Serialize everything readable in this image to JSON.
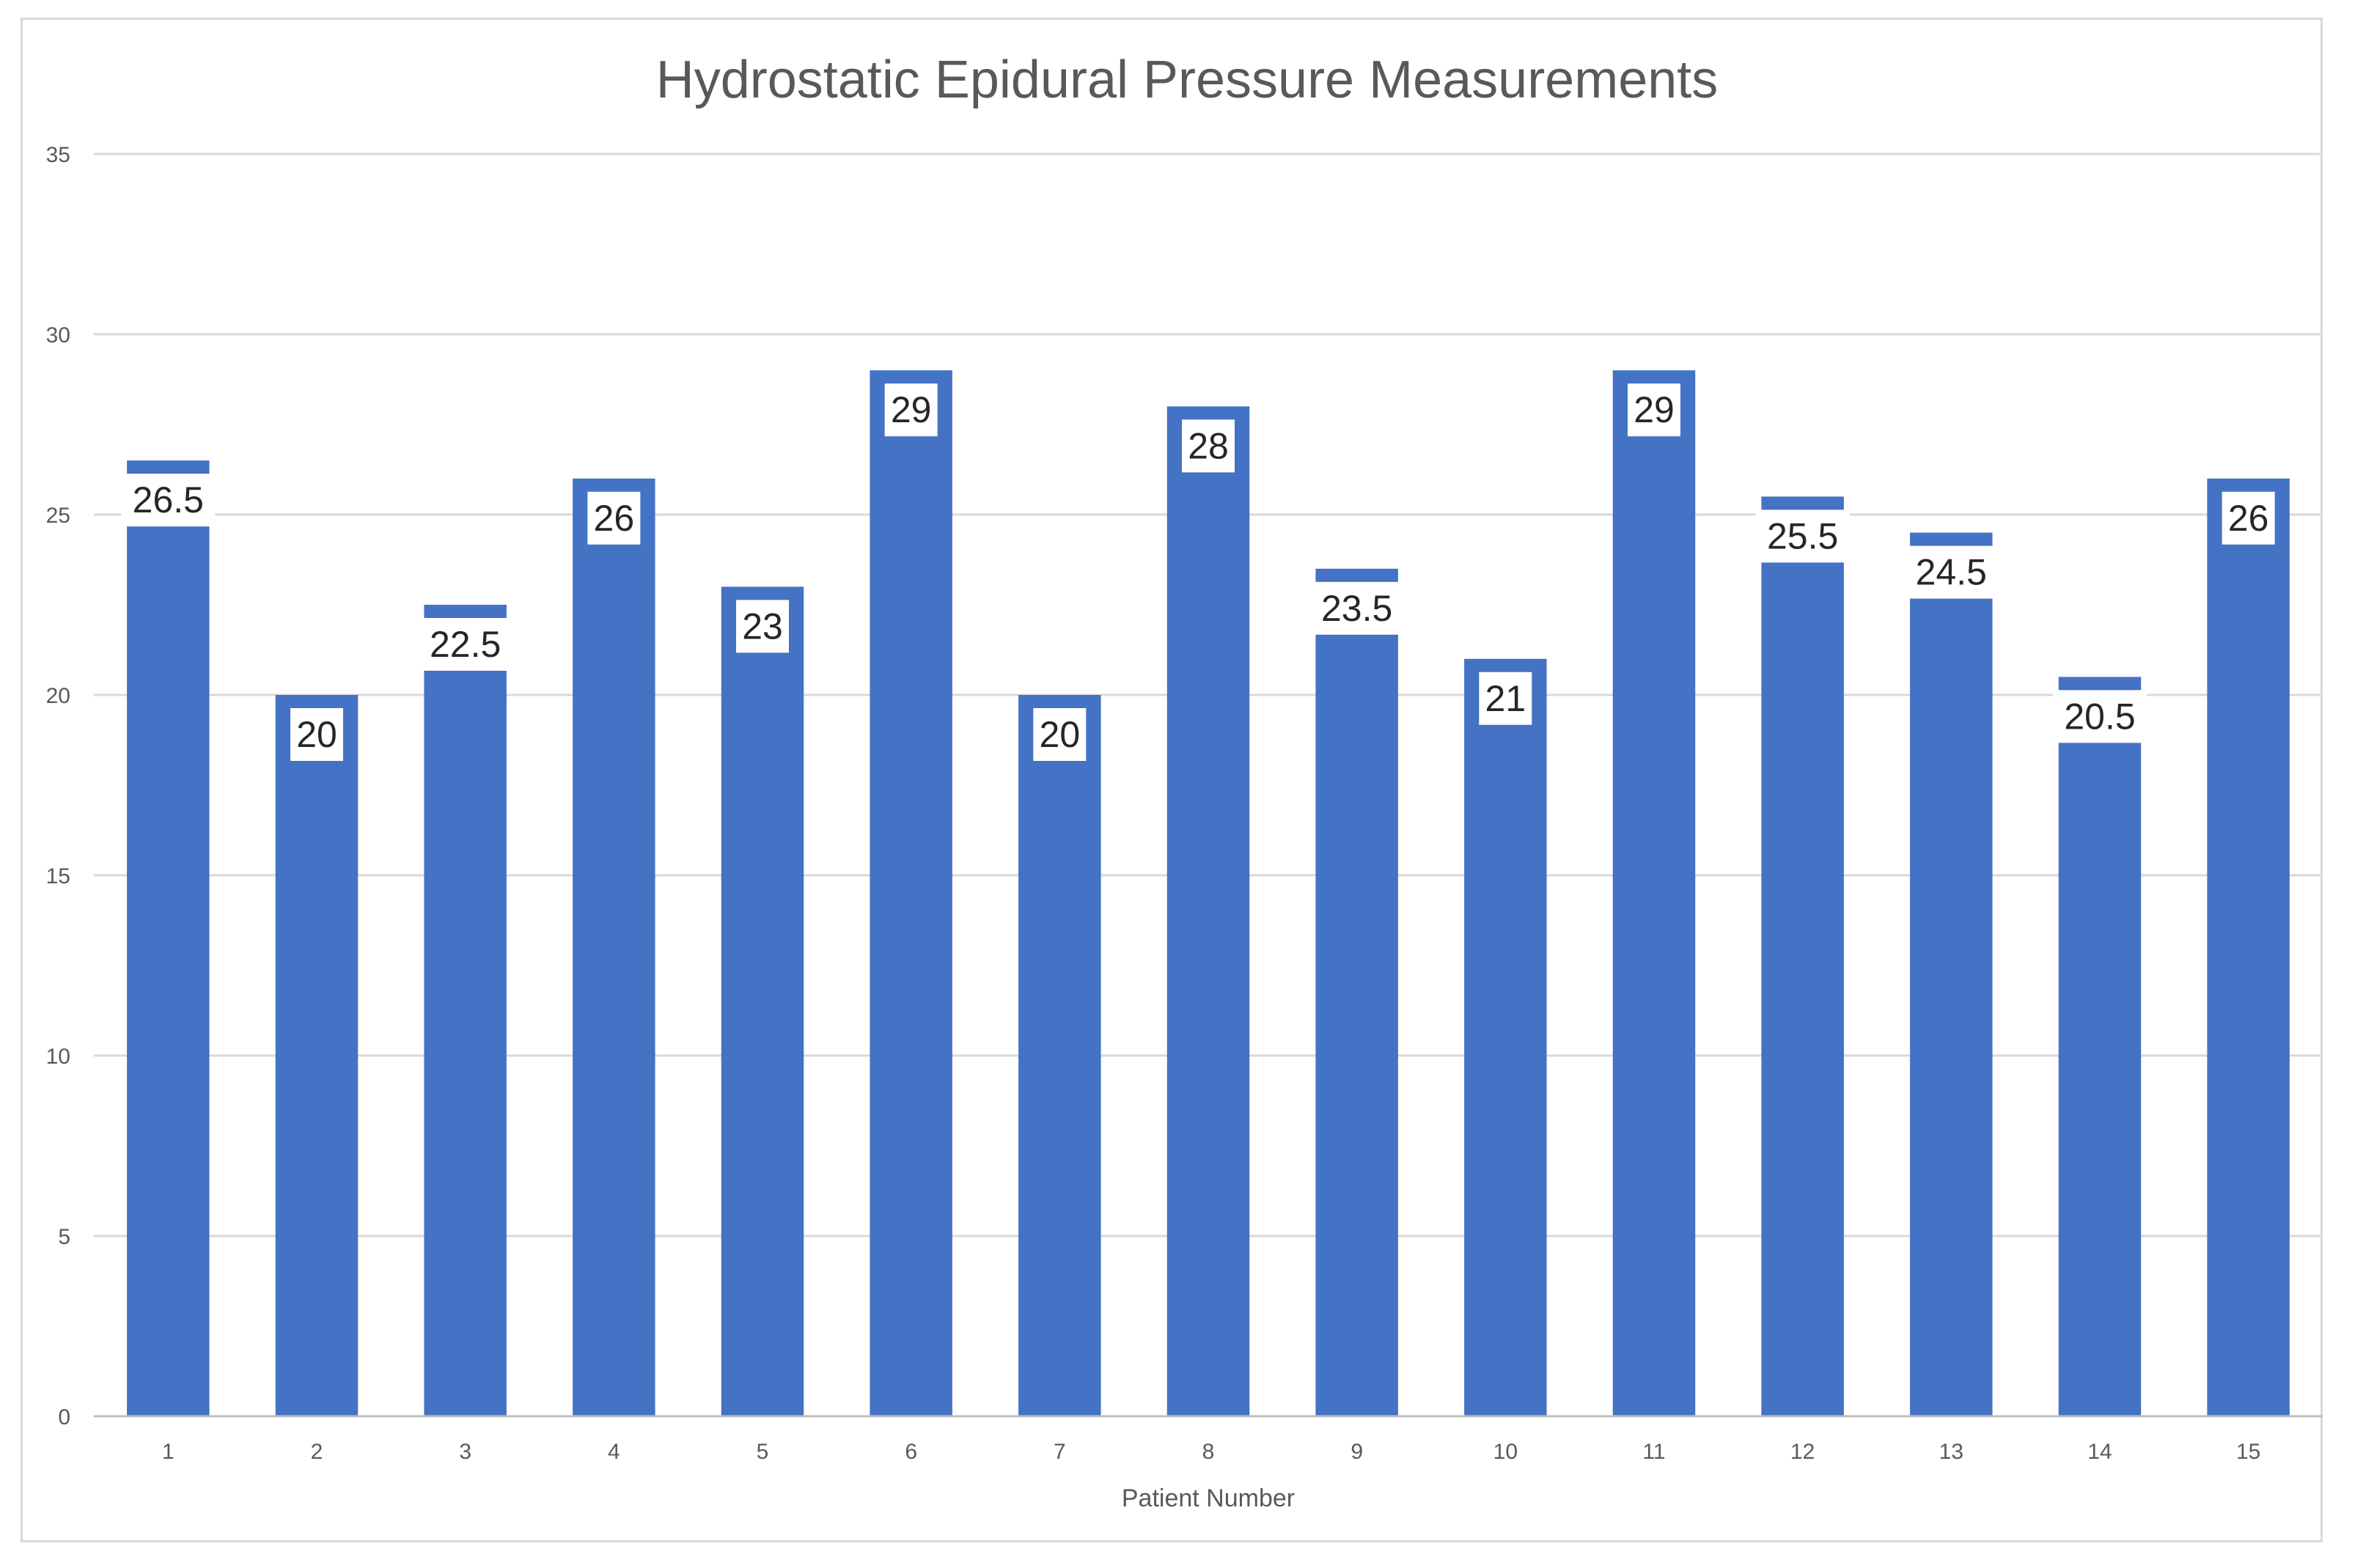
{
  "chart_data": {
    "type": "bar",
    "title": "Hydrostatic Epidural Pressure Measurements",
    "xlabel": "Patient Number",
    "ylabel": "",
    "categories": [
      "1",
      "2",
      "3",
      "4",
      "5",
      "6",
      "7",
      "8",
      "9",
      "10",
      "11",
      "12",
      "13",
      "14",
      "15"
    ],
    "values": [
      26.5,
      20,
      22.5,
      26,
      23,
      29,
      20,
      28,
      23.5,
      21,
      29,
      25.5,
      24.5,
      20.5,
      26
    ],
    "data_labels": [
      "26.5",
      "20",
      "22.5",
      "26",
      "23",
      "29",
      "20",
      "28",
      "23.5",
      "21",
      "29",
      "25.5",
      "24.5",
      "20.5",
      "26"
    ],
    "ylim": [
      0,
      35
    ],
    "y_ticks": [
      0,
      5,
      10,
      15,
      20,
      25,
      30,
      35
    ],
    "y_tick_labels": [
      "0",
      "5",
      "10",
      "15",
      "20",
      "25",
      "30",
      "35"
    ],
    "grid": true,
    "legend": "none",
    "bar_color": "#4472C4",
    "grid_color": "#d9d9d9",
    "text_color": "#595959"
  }
}
